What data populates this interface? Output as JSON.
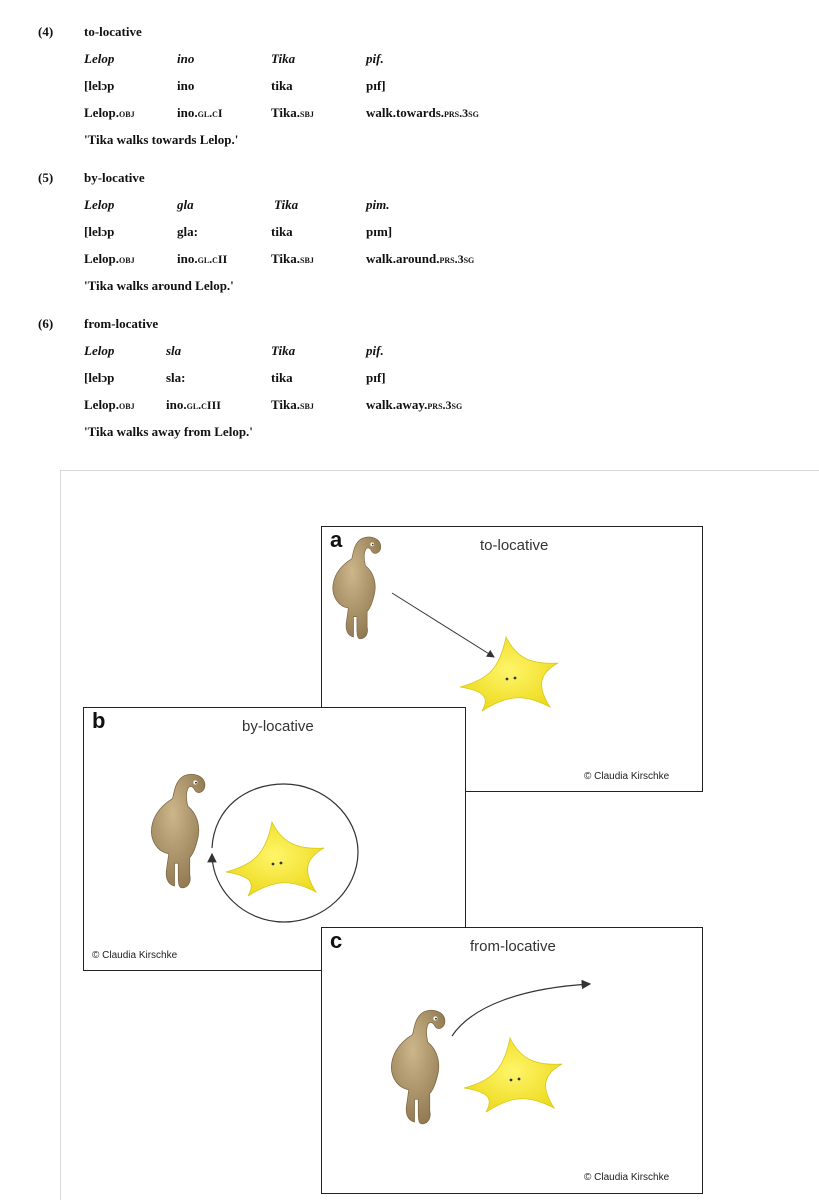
{
  "examples": [
    {
      "number": "(4)",
      "title": "to-locative",
      "row1": [
        "Lelop",
        "ino",
        "Tika",
        "pif."
      ],
      "row2": [
        "[lelɔp",
        "ino",
        "tika",
        "pɪf]"
      ],
      "row3": [
        {
          "base": "Lelop.",
          "sc": "obj"
        },
        {
          "base": "ino.",
          "sc": "gl.cI"
        },
        {
          "base": "Tika.",
          "sc": "sbj"
        },
        {
          "base": "walk.towards.",
          "sc": "prs.3sg"
        }
      ],
      "translation": "'Tika walks towards Lelop.'"
    },
    {
      "number": "(5)",
      "title": "by-locative",
      "row1": [
        "Lelop",
        "gla",
        "Tika",
        "pim."
      ],
      "row2": [
        "[lelɔp",
        "gla:",
        "tika",
        "pɪm]"
      ],
      "row3": [
        {
          "base": "Lelop.",
          "sc": "obj"
        },
        {
          "base": "ino.",
          "sc": "gl.cII"
        },
        {
          "base": "Tika.",
          "sc": "sbj"
        },
        {
          "base": "walk.around.",
          "sc": "prs.3sg"
        }
      ],
      "translation": "'Tika walks around Lelop.'"
    },
    {
      "number": "(6)",
      "title": "from-locative",
      "row1": [
        "Lelop",
        "sla",
        "Tika",
        "pif."
      ],
      "row2": [
        "[lelɔp",
        "sla:",
        "tika",
        "pɪf]"
      ],
      "row3": [
        {
          "base": "Lelop.",
          "sc": "obj"
        },
        {
          "base": "ino.",
          "sc": "gl.cIII"
        },
        {
          "base": "Tika.",
          "sc": "sbj"
        },
        {
          "base": "walk.away.",
          "sc": "prs.3sg"
        }
      ],
      "translation": "'Tika walks away from Lelop.'"
    }
  ],
  "figure": {
    "panels": [
      {
        "letter": "a",
        "title": "to-locative",
        "credit": "© Claudia Kirschke"
      },
      {
        "letter": "b",
        "title": "by-locative",
        "credit": "© Claudia Kirschke"
      },
      {
        "letter": "c",
        "title": "from-locative",
        "credit": "© Claudia Kirschke"
      }
    ],
    "colors": {
      "creature_body": "#b49a6e",
      "creature_shade": "#8f7750",
      "star_fill": "#f5ea2a",
      "star_edge": "#d8c81a",
      "border": "#222222"
    }
  }
}
